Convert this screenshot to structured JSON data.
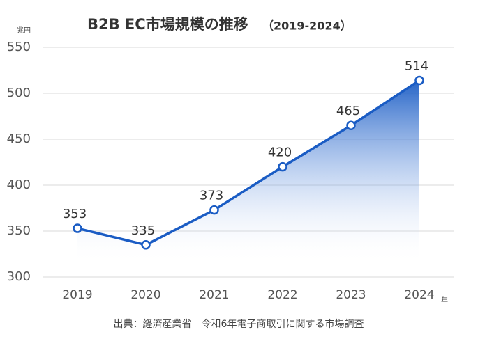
{
  "chart_data": {
    "type": "line",
    "title": "B2B EC市場規模の推移",
    "subtitle": "（2019-2024）",
    "y_unit": "兆円",
    "x_unit": "年",
    "source": "出典：経済産業省　令和6年電子商取引に関する市場調査",
    "categories": [
      "2019",
      "2020",
      "2021",
      "2022",
      "2023",
      "2024"
    ],
    "values": [
      353,
      335,
      373,
      420,
      465,
      514
    ],
    "color": "#1a5cc4",
    "ylim": [
      300,
      550
    ],
    "yticks": [
      300,
      350,
      400,
      450,
      500,
      550
    ],
    "grid": true,
    "area": true
  }
}
